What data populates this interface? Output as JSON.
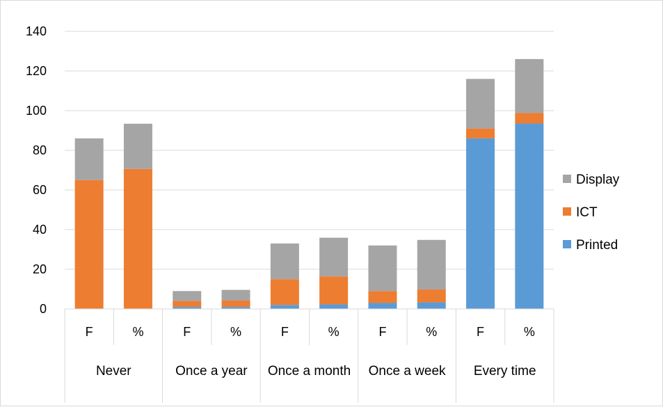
{
  "chart_data": {
    "type": "bar",
    "stacked": true,
    "title": "",
    "xlabel": "",
    "ylabel": "",
    "ylim": [
      0,
      140
    ],
    "yticks": [
      0,
      20,
      40,
      60,
      80,
      100,
      120,
      140
    ],
    "grid": true,
    "legend_position": "right",
    "groups": [
      {
        "label": "Never",
        "categories": [
          "F",
          "%"
        ]
      },
      {
        "label": "Once a year",
        "categories": [
          "F",
          "%"
        ]
      },
      {
        "label": "Once a month",
        "categories": [
          "F",
          "%"
        ]
      },
      {
        "label": "Once a week",
        "categories": [
          "F",
          "%"
        ]
      },
      {
        "label": "Every time",
        "categories": [
          "F",
          "%"
        ]
      }
    ],
    "series": [
      {
        "name": "Printed",
        "color": "#5b9bd5",
        "values": [
          0,
          0,
          1,
          1,
          2,
          2.3,
          3,
          3.3,
          86,
          93.5
        ]
      },
      {
        "name": "ICT",
        "color": "#ed7d31",
        "values": [
          65,
          70.6,
          3,
          3.2,
          13,
          14.1,
          6,
          6.5,
          5,
          5.3
        ]
      },
      {
        "name": "Display",
        "color": "#a5a5a5",
        "values": [
          21,
          22.8,
          5,
          5.4,
          18,
          19.5,
          23,
          25,
          25,
          27.2
        ]
      }
    ],
    "legend_order": [
      "Display",
      "ICT",
      "Printed"
    ]
  }
}
